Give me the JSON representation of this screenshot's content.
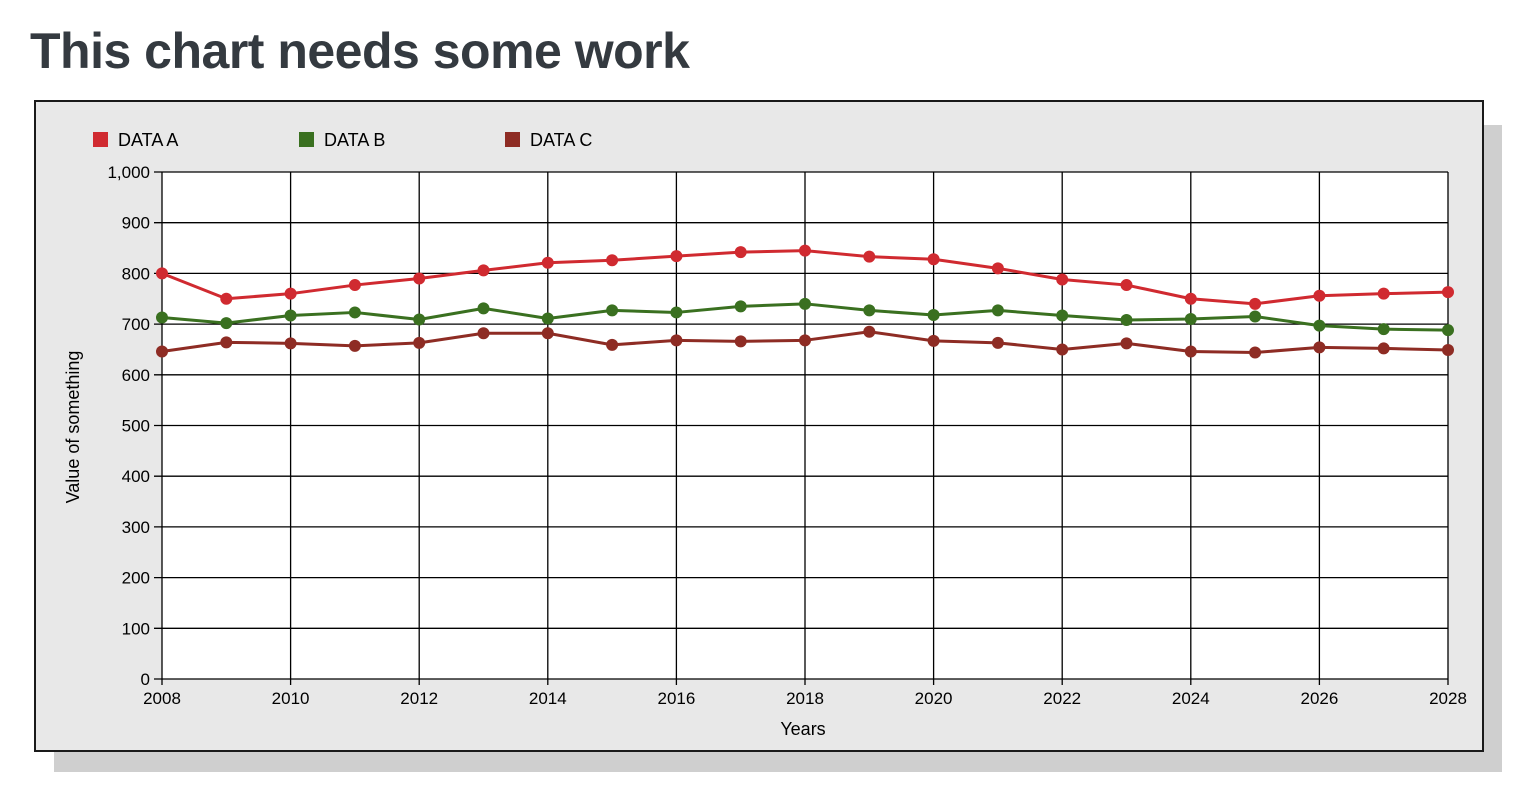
{
  "page": {
    "title": "This chart needs some work"
  },
  "chart_data": {
    "type": "line",
    "title": "",
    "xlabel": "Years",
    "ylabel": "Value of something",
    "xlim": [
      2008,
      2028
    ],
    "ylim": [
      0,
      1000
    ],
    "x_ticks": [
      "2008",
      "2010",
      "2012",
      "2014",
      "2016",
      "2018",
      "2020",
      "2022",
      "2024",
      "2026",
      "2028"
    ],
    "y_ticks": [
      "0",
      "100",
      "200",
      "300",
      "400",
      "500",
      "600",
      "700",
      "800",
      "900",
      "1,000"
    ],
    "grid": true,
    "legend_position": "top-left",
    "x": [
      2008,
      2009,
      2010,
      2011,
      2012,
      2013,
      2014,
      2015,
      2016,
      2017,
      2018,
      2019,
      2020,
      2021,
      2022,
      2023,
      2024,
      2025,
      2026,
      2027,
      2028
    ],
    "series": [
      {
        "name": "DATA A",
        "color": "#d02a30",
        "values": [
          800,
          750,
          760,
          777,
          790,
          806,
          821,
          826,
          834,
          842,
          845,
          833,
          828,
          810,
          788,
          777,
          750,
          740,
          756,
          760,
          763
        ]
      },
      {
        "name": "DATA B",
        "color": "#3a7020",
        "values": [
          713,
          702,
          717,
          723,
          709,
          731,
          711,
          727,
          723,
          735,
          740,
          727,
          718,
          727,
          717,
          708,
          710,
          715,
          697,
          690,
          688
        ]
      },
      {
        "name": "DATA C",
        "color": "#8e2c24",
        "values": [
          646,
          664,
          662,
          657,
          663,
          682,
          682,
          659,
          668,
          666,
          668,
          685,
          667,
          663,
          650,
          662,
          646,
          644,
          654,
          652,
          649
        ]
      }
    ]
  }
}
